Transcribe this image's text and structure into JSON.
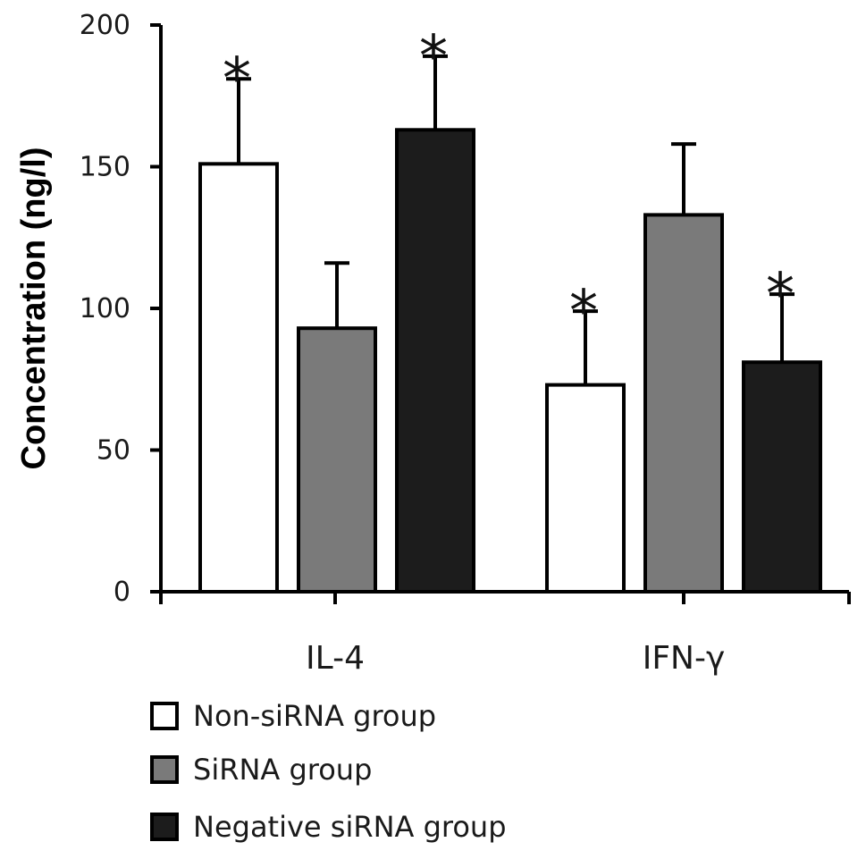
{
  "chart_data": {
    "type": "bar",
    "title": "",
    "xlabel": "",
    "ylabel": "Concentration (ng/l)",
    "ylim": [
      0,
      200
    ],
    "yticks": [
      0,
      50,
      100,
      150,
      200
    ],
    "categories": [
      "IL-4",
      "IFN-γ"
    ],
    "series": [
      {
        "name": "Non-siRNA group",
        "color": "#ffffff",
        "values": [
          151,
          73
        ],
        "errors": [
          30,
          26
        ],
        "significant": [
          true,
          true
        ]
      },
      {
        "name": "SiRNA group",
        "color": "#7a7a7a",
        "values": [
          93,
          133
        ],
        "errors": [
          23,
          25
        ],
        "significant": [
          false,
          false
        ]
      },
      {
        "name": "Negative siRNA group",
        "color": "#1c1c1c",
        "values": [
          163,
          81
        ],
        "errors": [
          26,
          24
        ],
        "significant": [
          true,
          true
        ]
      }
    ],
    "significance_marker": "*",
    "legend_position": "bottom-left",
    "grid": false
  }
}
